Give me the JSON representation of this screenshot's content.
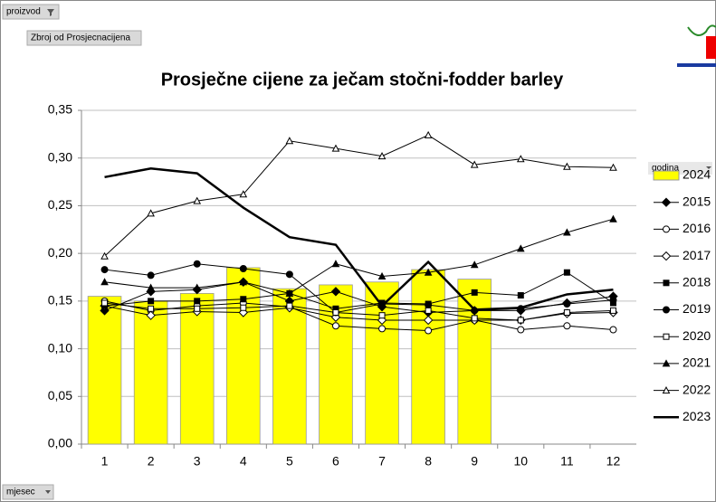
{
  "ui": {
    "page_field": "proizvod",
    "data_field": "Zbroj od Prosjecnacijena",
    "axis_field": "mjesec"
  },
  "chart_data": {
    "type": "line",
    "title": "Prosječne cijene za ječam stočni-fodder barley",
    "legend_title": "godina",
    "legend": "right",
    "grid": true,
    "categories": [
      "1",
      "2",
      "3",
      "4",
      "5",
      "6",
      "7",
      "8",
      "9",
      "10",
      "11",
      "12"
    ],
    "ylim": [
      0,
      0.35
    ],
    "yticks": [
      {
        "value": 0,
        "label": "0,00"
      },
      {
        "value": 0.05,
        "label": "0,05"
      },
      {
        "value": 0.1,
        "label": "0,10"
      },
      {
        "value": 0.15,
        "label": "0,15"
      },
      {
        "value": 0.2,
        "label": "0,20"
      },
      {
        "value": 0.25,
        "label": "0,25"
      },
      {
        "value": 0.3,
        "label": "0,30"
      },
      {
        "value": 0.35,
        "label": "0,35"
      }
    ],
    "series": [
      {
        "name": "2024",
        "type": "bar",
        "color": "#ffff00",
        "values": [
          0.155,
          0.15,
          0.158,
          0.185,
          0.163,
          0.167,
          0.17,
          0.183,
          0.173,
          null,
          null,
          null
        ]
      },
      {
        "name": "2015",
        "type": "line",
        "color": "#000000",
        "marker": "diamond",
        "values": [
          0.14,
          0.16,
          0.162,
          0.17,
          0.15,
          0.16,
          0.144,
          0.138,
          0.14,
          0.14,
          0.148,
          0.155
        ]
      },
      {
        "name": "2016",
        "type": "line",
        "color": "#000000",
        "marker": "circle-open",
        "values": [
          0.15,
          0.14,
          0.145,
          0.148,
          0.144,
          0.124,
          0.121,
          0.119,
          0.13,
          0.12,
          0.124,
          0.12
        ]
      },
      {
        "name": "2017",
        "type": "line",
        "color": "#000000",
        "marker": "diamond-open",
        "values": [
          0.145,
          0.135,
          0.139,
          0.138,
          0.143,
          0.133,
          0.13,
          0.13,
          0.13,
          0.13,
          0.137,
          0.138
        ]
      },
      {
        "name": "2018",
        "type": "line",
        "color": "#000000",
        "marker": "square",
        "values": [
          0.145,
          0.15,
          0.15,
          0.152,
          0.158,
          0.142,
          0.148,
          0.147,
          0.159,
          0.156,
          0.18,
          0.148
        ]
      },
      {
        "name": "2019",
        "type": "line",
        "color": "#000000",
        "marker": "circle",
        "values": [
          0.183,
          0.177,
          0.189,
          0.184,
          0.178,
          0.138,
          0.147,
          0.146,
          0.14,
          0.142,
          0.147,
          0.151
        ]
      },
      {
        "name": "2020",
        "type": "line",
        "color": "#000000",
        "marker": "square-open",
        "values": [
          0.148,
          0.142,
          0.142,
          0.143,
          0.145,
          0.138,
          0.135,
          0.14,
          0.132,
          0.13,
          0.138,
          0.14
        ]
      },
      {
        "name": "2021",
        "type": "line",
        "color": "#000000",
        "marker": "triangle",
        "values": [
          0.17,
          0.164,
          0.164,
          0.17,
          0.158,
          0.189,
          0.176,
          0.18,
          0.188,
          0.205,
          0.222,
          0.236
        ]
      },
      {
        "name": "2022",
        "type": "line",
        "color": "#000000",
        "marker": "triangle-open",
        "values": [
          0.197,
          0.242,
          0.255,
          0.262,
          0.318,
          0.31,
          0.302,
          0.324,
          0.293,
          0.299,
          0.291,
          0.29
        ]
      },
      {
        "name": "2023",
        "type": "line",
        "color": "#000000",
        "marker": "none",
        "width": 2.5,
        "values": [
          0.28,
          0.289,
          0.284,
          0.248,
          0.217,
          0.209,
          0.145,
          0.191,
          0.141,
          0.143,
          0.157,
          0.162
        ]
      }
    ]
  }
}
